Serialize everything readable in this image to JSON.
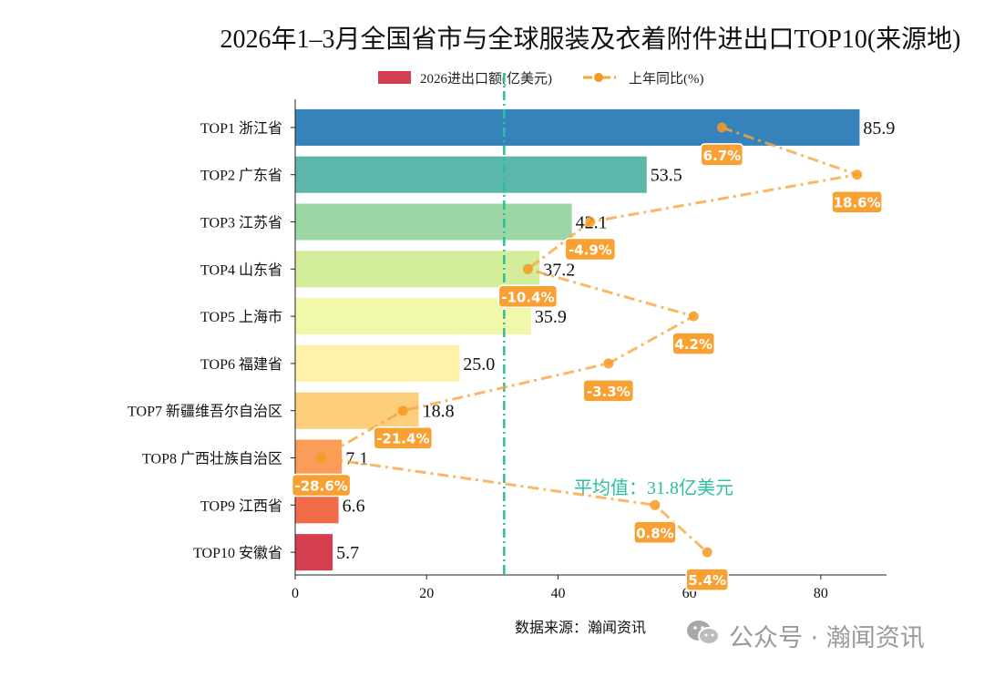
{
  "chart_data": {
    "type": "bar",
    "orientation": "horizontal",
    "title": "2026年1–3月全国省市与全球服装及衣着附件进出口TOP10(来源地)",
    "categories": [
      "TOP1 浙江省",
      "TOP2 广东省",
      "TOP3 江苏省",
      "TOP4 山东省",
      "TOP5 上海市",
      "TOP6 福建省",
      "TOP7 新疆维吾尔自治区",
      "TOP8 广西壮族自治区",
      "TOP9 江西省",
      "TOP10 安徽省"
    ],
    "series": [
      {
        "name": "2026进出口额(亿美元)",
        "type": "bar",
        "values": [
          85.9,
          53.5,
          42.1,
          37.2,
          35.9,
          25.0,
          18.8,
          7.1,
          6.6,
          5.7
        ],
        "colors": [
          "#3682ba",
          "#5cb6a9",
          "#9cd6a4",
          "#d3ed9b",
          "#f1f8a9",
          "#fef2a9",
          "#fdce7c",
          "#fb9d59",
          "#f26b47",
          "#d53e4f"
        ]
      },
      {
        "name": "上年同比(%)",
        "type": "line",
        "values": [
          6.7,
          18.6,
          -4.9,
          -10.4,
          4.2,
          -3.3,
          -21.4,
          -28.6,
          0.8,
          5.4
        ],
        "labels": [
          "6.7%",
          "18.6%",
          "-4.9%",
          "-10.4%",
          "4.2%",
          "-3.3%",
          "-21.4%",
          "-28.6%",
          "0.8%",
          "5.4%"
        ],
        "color": "#f59a23",
        "xlim": [
          -30.9,
          21.2
        ]
      }
    ],
    "xlim": [
      0,
      90
    ],
    "xticks": [
      "0",
      "20",
      "40",
      "60",
      "80"
    ],
    "average": {
      "value": 31.8,
      "label": "平均值：31.8亿美元",
      "color": "#2bbf9e"
    },
    "legend": "top-center",
    "grid": false
  },
  "footer": {
    "source": "数据来源：瀚闻资讯",
    "watermark": "公众号 · 瀚闻资讯"
  }
}
